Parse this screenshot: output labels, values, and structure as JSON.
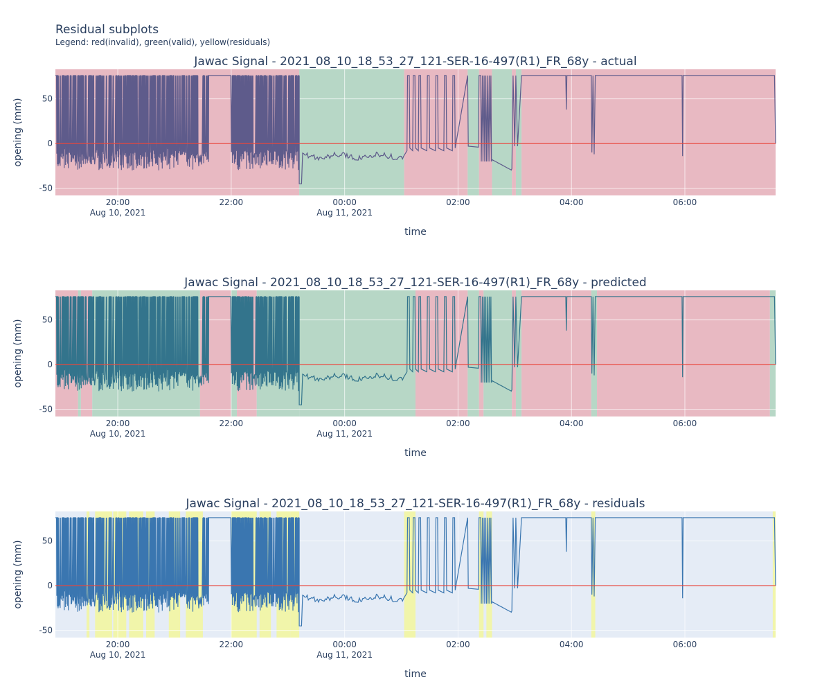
{
  "figure": {
    "title": "Residual subplots",
    "subtitle": "Legend: red(invalid), green(valid), yellow(residuals)"
  },
  "colors": {
    "plot_bg": "#e5ecf6",
    "grid": "#ffffff",
    "invalid": "#e8b9c2",
    "valid": "#b7d7c6",
    "residual": "#f1f5a5",
    "signal_actual": "#5e5b8b",
    "signal_predicted": "#33748c",
    "signal_residuals": "#3a76b0",
    "zero_line": "#e8473d"
  },
  "chart_data": [
    {
      "type": "line",
      "title": "Jawac Signal - 2021_08_10_18_53_27_121-SER-16-497(R1)_FR_68y - actual",
      "xlabel": "time",
      "ylabel": "opening (mm)",
      "xlim_hours": [
        18.9,
        31.6
      ],
      "ylim": [
        -58,
        83
      ],
      "x_ticks": [
        {
          "h": 20,
          "label": "20:00",
          "sub": "Aug 10, 2021"
        },
        {
          "h": 22,
          "label": "22:00",
          "sub": ""
        },
        {
          "h": 24,
          "label": "00:00",
          "sub": "Aug 11, 2021"
        },
        {
          "h": 26,
          "label": "02:00",
          "sub": ""
        },
        {
          "h": 28,
          "label": "04:00",
          "sub": ""
        },
        {
          "h": 30,
          "label": "06:00",
          "sub": ""
        }
      ],
      "y_ticks": [
        -50,
        0,
        50
      ],
      "regions": [
        {
          "start": 18.9,
          "end": 23.2,
          "cls": "invalid"
        },
        {
          "start": 23.2,
          "end": 25.05,
          "cls": "valid"
        },
        {
          "start": 25.05,
          "end": 26.17,
          "cls": "invalid"
        },
        {
          "start": 26.17,
          "end": 26.37,
          "cls": "valid"
        },
        {
          "start": 26.37,
          "end": 26.6,
          "cls": "invalid"
        },
        {
          "start": 26.6,
          "end": 26.95,
          "cls": "valid"
        },
        {
          "start": 26.95,
          "end": 27.02,
          "cls": "invalid"
        },
        {
          "start": 27.02,
          "end": 27.12,
          "cls": "valid"
        },
        {
          "start": 27.12,
          "end": 31.6,
          "cls": "invalid"
        }
      ],
      "signal": {
        "baseline": 76,
        "dense_end": 23.2,
        "gap": [
          21.6,
          22.0
        ],
        "mode": "actual"
      }
    },
    {
      "type": "line",
      "title": "Jawac Signal - 2021_08_10_18_53_27_121-SER-16-497(R1)_FR_68y - predicted",
      "xlabel": "time",
      "ylabel": "opening (mm)",
      "xlim_hours": [
        18.9,
        31.6
      ],
      "ylim": [
        -58,
        83
      ],
      "x_ticks": [
        {
          "h": 20,
          "label": "20:00",
          "sub": "Aug 10, 2021"
        },
        {
          "h": 22,
          "label": "22:00",
          "sub": ""
        },
        {
          "h": 24,
          "label": "00:00",
          "sub": "Aug 11, 2021"
        },
        {
          "h": 26,
          "label": "02:00",
          "sub": ""
        },
        {
          "h": 28,
          "label": "04:00",
          "sub": ""
        },
        {
          "h": 30,
          "label": "06:00",
          "sub": ""
        }
      ],
      "y_ticks": [
        -50,
        0,
        50
      ],
      "regions": [
        {
          "start": 18.9,
          "end": 19.3,
          "cls": "invalid"
        },
        {
          "start": 19.3,
          "end": 19.35,
          "cls": "valid"
        },
        {
          "start": 19.35,
          "end": 19.55,
          "cls": "invalid"
        },
        {
          "start": 19.55,
          "end": 21.45,
          "cls": "valid"
        },
        {
          "start": 21.45,
          "end": 22.0,
          "cls": "invalid"
        },
        {
          "start": 22.0,
          "end": 22.1,
          "cls": "valid"
        },
        {
          "start": 22.1,
          "end": 22.45,
          "cls": "invalid"
        },
        {
          "start": 22.45,
          "end": 23.2,
          "cls": "valid"
        },
        {
          "start": 23.2,
          "end": 25.25,
          "cls": "valid"
        },
        {
          "start": 25.25,
          "end": 26.17,
          "cls": "invalid"
        },
        {
          "start": 26.17,
          "end": 26.37,
          "cls": "valid"
        },
        {
          "start": 26.37,
          "end": 26.45,
          "cls": "invalid"
        },
        {
          "start": 26.45,
          "end": 26.95,
          "cls": "valid"
        },
        {
          "start": 26.95,
          "end": 27.02,
          "cls": "invalid"
        },
        {
          "start": 27.02,
          "end": 27.12,
          "cls": "valid"
        },
        {
          "start": 27.12,
          "end": 28.35,
          "cls": "invalid"
        },
        {
          "start": 28.35,
          "end": 28.45,
          "cls": "valid"
        },
        {
          "start": 28.45,
          "end": 31.5,
          "cls": "invalid"
        },
        {
          "start": 31.5,
          "end": 31.6,
          "cls": "valid"
        }
      ],
      "signal": {
        "baseline": 76,
        "dense_end": 23.2,
        "gap": [
          21.6,
          22.0
        ],
        "mode": "predicted"
      }
    },
    {
      "type": "line",
      "title": "Jawac Signal - 2021_08_10_18_53_27_121-SER-16-497(R1)_FR_68y - residuals",
      "xlabel": "time",
      "ylabel": "opening (mm)",
      "xlim_hours": [
        18.9,
        31.6
      ],
      "ylim": [
        -58,
        83
      ],
      "x_ticks": [
        {
          "h": 20,
          "label": "20:00",
          "sub": "Aug 10, 2021"
        },
        {
          "h": 22,
          "label": "22:00",
          "sub": ""
        },
        {
          "h": 24,
          "label": "00:00",
          "sub": "Aug 11, 2021"
        },
        {
          "h": 26,
          "label": "02:00",
          "sub": ""
        },
        {
          "h": 28,
          "label": "04:00",
          "sub": ""
        },
        {
          "h": 30,
          "label": "06:00",
          "sub": ""
        }
      ],
      "y_ticks": [
        -50,
        0,
        50
      ],
      "regions": [
        {
          "start": 19.45,
          "end": 19.5,
          "cls": "residual"
        },
        {
          "start": 19.6,
          "end": 19.9,
          "cls": "residual"
        },
        {
          "start": 19.92,
          "end": 20.15,
          "cls": "residual"
        },
        {
          "start": 20.2,
          "end": 20.45,
          "cls": "residual"
        },
        {
          "start": 20.5,
          "end": 20.65,
          "cls": "residual"
        },
        {
          "start": 20.9,
          "end": 21.1,
          "cls": "residual"
        },
        {
          "start": 21.2,
          "end": 21.5,
          "cls": "residual"
        },
        {
          "start": 22.0,
          "end": 22.45,
          "cls": "residual"
        },
        {
          "start": 22.5,
          "end": 22.7,
          "cls": "residual"
        },
        {
          "start": 22.8,
          "end": 23.05,
          "cls": "residual"
        },
        {
          "start": 23.05,
          "end": 23.2,
          "cls": "residual"
        },
        {
          "start": 25.05,
          "end": 25.25,
          "cls": "residual"
        },
        {
          "start": 26.37,
          "end": 26.45,
          "cls": "residual"
        },
        {
          "start": 26.5,
          "end": 26.6,
          "cls": "residual"
        },
        {
          "start": 28.35,
          "end": 28.42,
          "cls": "residual"
        },
        {
          "start": 31.55,
          "end": 31.6,
          "cls": "residual"
        }
      ],
      "signal": {
        "baseline": 76,
        "dense_end": 23.2,
        "gap": [
          21.6,
          22.0
        ],
        "mode": "residuals"
      }
    }
  ]
}
